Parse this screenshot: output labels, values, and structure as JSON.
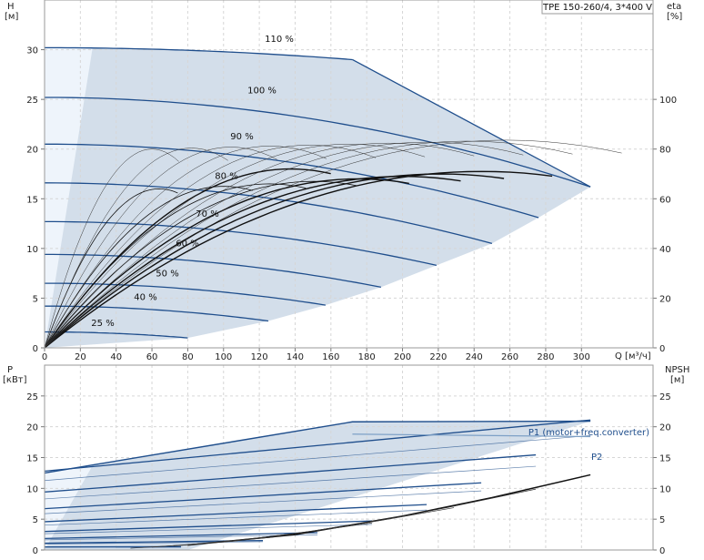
{
  "chart_data": [
    {
      "type": "line",
      "title": "TPE 150-260/4, 3*400 V",
      "y_left_label": [
        "H",
        "[м]"
      ],
      "y_right_label": [
        "eta",
        "[%]"
      ],
      "x_label": "Q [м³/ч]",
      "xlim": [
        0,
        340
      ],
      "x_ticks": [
        0,
        20,
        40,
        60,
        80,
        100,
        120,
        140,
        160,
        180,
        200,
        220,
        240,
        260,
        280,
        300
      ],
      "ylim_left": [
        0,
        35
      ],
      "y_ticks_left": [
        0,
        5,
        10,
        15,
        20,
        25,
        30
      ],
      "ylim_right": [
        0,
        140
      ],
      "y_ticks_right": [
        0,
        20,
        40,
        60,
        80,
        100
      ],
      "grid": true,
      "colors": {
        "curve": "#1f4e8c",
        "envelope": "#d3deea",
        "eta": "#111111"
      },
      "head_curves": [
        {
          "label": "25 %",
          "x": [
            0,
            80
          ],
          "y": [
            1.6,
            1.0
          ]
        },
        {
          "label": "40 %",
          "x": [
            0,
            125
          ],
          "y": [
            4.2,
            2.7
          ]
        },
        {
          "label": "50 %",
          "x": [
            0,
            157
          ],
          "y": [
            6.5,
            4.3
          ]
        },
        {
          "label": "60 %",
          "x": [
            0,
            188
          ],
          "y": [
            9.4,
            6.1
          ]
        },
        {
          "label": "70 %",
          "x": [
            0,
            219
          ],
          "y": [
            12.7,
            8.3
          ]
        },
        {
          "label": "80 %",
          "x": [
            0,
            250
          ],
          "y": [
            16.6,
            10.5
          ]
        },
        {
          "label": "90 %",
          "x": [
            0,
            276
          ],
          "y": [
            20.5,
            13.1
          ]
        },
        {
          "label": "100 %",
          "x": [
            0,
            305
          ],
          "y": [
            25.2,
            16.2
          ]
        },
        {
          "label": "110 %",
          "x": [
            0,
            172
          ],
          "y": [
            30.2,
            29.0
          ]
        }
      ],
      "envelope": {
        "x": [
          0,
          80,
          125,
          157,
          188,
          219,
          250,
          276,
          305,
          172,
          0
        ],
        "y": [
          0,
          1.0,
          2.7,
          4.3,
          6.1,
          8.3,
          10.5,
          13.1,
          16.2,
          29.0,
          30.2
        ]
      },
      "eta_peak_percent": 72
    },
    {
      "type": "line",
      "y_left_label": [
        "P",
        "[кВт]"
      ],
      "y_right_label": [
        "NPSH",
        "[м]"
      ],
      "xlim": [
        0,
        340
      ],
      "ylim_left": [
        0,
        30
      ],
      "y_ticks_left": [
        0,
        5,
        10,
        15,
        20,
        25
      ],
      "ylim_right": [
        0,
        30
      ],
      "y_ticks_right": [
        0,
        5,
        10,
        15,
        20,
        25
      ],
      "grid": true,
      "series_labels": [
        "P1 (motor+freq.converter)",
        "P2"
      ],
      "p1_max": {
        "x": [
          0,
          172,
          305
        ],
        "y": [
          12.5,
          20.8,
          20.9
        ]
      },
      "p2_max": {
        "x": [
          172,
          305
        ],
        "y": [
          18.8,
          18.4
        ]
      },
      "npsh": {
        "x": [
          80,
          140,
          200,
          250,
          305
        ],
        "y": [
          0.8,
          2.5,
          5.5,
          8.5,
          12.2
        ]
      }
    }
  ]
}
